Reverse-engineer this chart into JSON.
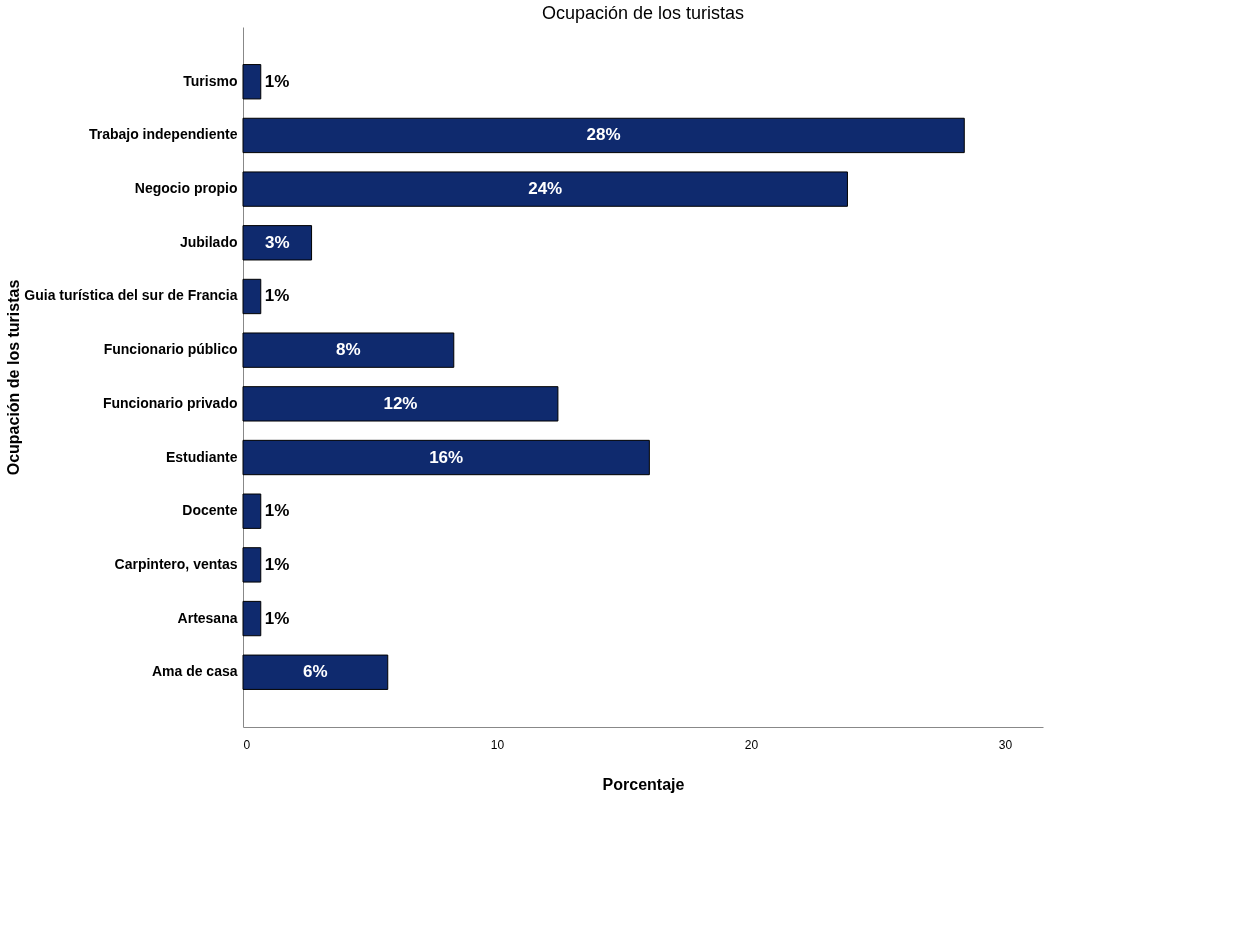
{
  "chart_data": {
    "type": "bar",
    "orientation": "horizontal",
    "title": "Ocupación de los turistas",
    "ylabel": "Ocupación de los turistas",
    "xlabel": "Porcentaje",
    "categories": [
      "Turismo",
      "Trabajo independiente",
      "Negocio propio",
      "Jubilado",
      "Guia turística del sur de Francia",
      "Funcionario público",
      "Funcionario privado",
      "Estudiante",
      "Docente",
      "Carpintero, ventas",
      "Artesana",
      "Ama de casa"
    ],
    "values": [
      0.7,
      28.4,
      23.8,
      2.7,
      0.7,
      8.3,
      12.4,
      16.0,
      0.7,
      0.7,
      0.7,
      5.7
    ],
    "value_labels": [
      "1%",
      "28%",
      "24%",
      "3%",
      "1%",
      "8%",
      "12%",
      "16%",
      "1%",
      "1%",
      "1%",
      "6%"
    ],
    "color": "#0f2a6e",
    "xlim": [
      0,
      31.5
    ],
    "xticks": [
      0,
      10,
      20,
      30
    ],
    "grid": false
  }
}
